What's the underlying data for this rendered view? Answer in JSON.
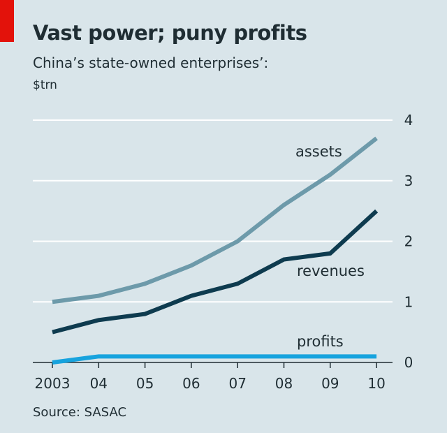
{
  "title": "Vast power; puny profits",
  "subtitle": "China’s state-owned enterprises’:",
  "unit": "$trn",
  "source": "Source: SASAC",
  "colors": {
    "accent_red": "#e3120b",
    "background": "#d9e5ea",
    "grid": "#ffffff",
    "assets": "#6d9aaa",
    "revenues": "#0e3b4f",
    "profits": "#17a3de"
  },
  "chart_data": {
    "type": "line",
    "title": "Vast power; puny profits",
    "subtitle": "China’s state-owned enterprises’:",
    "ylabel": "$trn",
    "x": [
      "2003",
      "04",
      "05",
      "06",
      "07",
      "08",
      "09",
      "10"
    ],
    "ylim": [
      0,
      4
    ],
    "yticks": [
      0,
      1,
      2,
      3,
      4
    ],
    "grid": true,
    "y_axis_side": "right",
    "series": [
      {
        "name": "assets",
        "values": [
          1.0,
          1.1,
          1.3,
          1.6,
          2.0,
          2.6,
          3.1,
          3.7
        ]
      },
      {
        "name": "revenues",
        "values": [
          0.5,
          0.7,
          0.8,
          1.1,
          1.3,
          1.7,
          1.8,
          2.5
        ]
      },
      {
        "name": "profits",
        "values": [
          0.0,
          0.1,
          0.1,
          0.1,
          0.1,
          0.1,
          0.1,
          0.1
        ]
      }
    ]
  }
}
